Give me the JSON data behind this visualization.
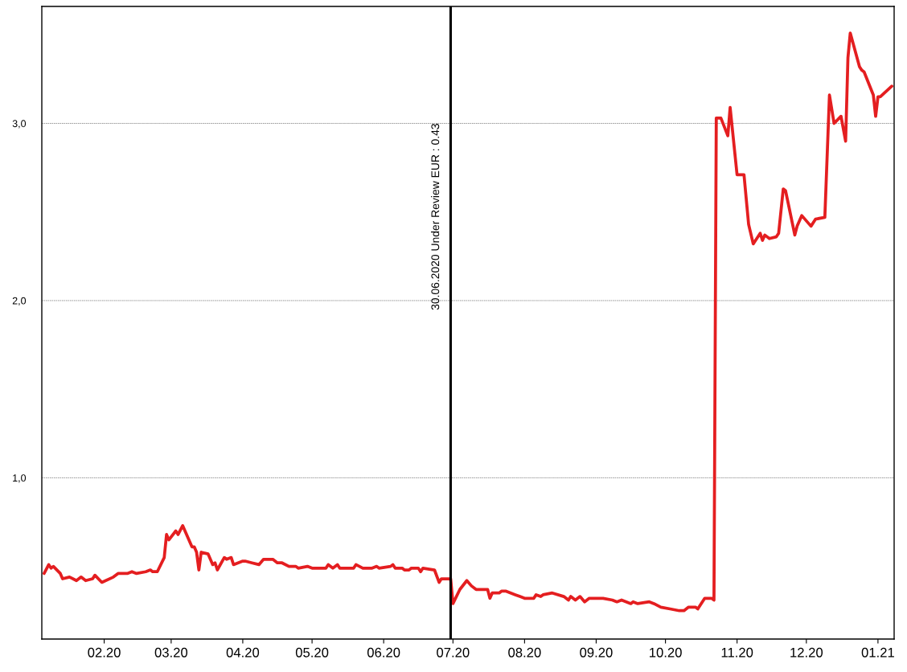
{
  "chart_data": {
    "type": "line",
    "x": [
      "2020-01-06",
      "2020-01-08",
      "2020-01-09",
      "2020-01-10",
      "2020-01-13",
      "2020-01-14",
      "2020-01-17",
      "2020-01-20",
      "2020-01-22",
      "2020-01-24",
      "2020-01-27",
      "2020-01-28",
      "2020-01-31",
      "2020-02-05",
      "2020-02-07",
      "2020-02-11",
      "2020-02-13",
      "2020-02-15",
      "2020-02-19",
      "2020-02-21",
      "2020-02-22",
      "2020-02-24",
      "2020-02-27",
      "2020-02-28",
      "2020-02-29",
      "2020-03-03",
      "2020-03-04",
      "2020-03-06",
      "2020-03-10",
      "2020-03-11",
      "2020-03-12",
      "2020-03-13",
      "2020-03-14",
      "2020-03-17",
      "2020-03-19",
      "2020-03-20",
      "2020-03-21",
      "2020-03-24",
      "2020-03-25",
      "2020-03-27",
      "2020-03-28",
      "2020-04-01",
      "2020-04-02",
      "2020-04-05",
      "2020-04-08",
      "2020-04-10",
      "2020-04-14",
      "2020-04-16",
      "2020-04-18",
      "2020-04-21",
      "2020-04-24",
      "2020-04-25",
      "2020-04-29",
      "2020-05-01",
      "2020-05-07",
      "2020-05-08",
      "2020-05-10",
      "2020-05-12",
      "2020-05-13",
      "2020-05-19",
      "2020-05-20",
      "2020-05-23",
      "2020-05-27",
      "2020-05-29",
      "2020-05-30",
      "2020-06-04",
      "2020-06-05",
      "2020-06-06",
      "2020-06-09",
      "2020-06-10",
      "2020-06-12",
      "2020-06-13",
      "2020-06-16",
      "2020-06-17",
      "2020-06-18",
      "2020-06-23",
      "2020-06-25",
      "2020-06-26",
      "2020-06-30",
      "2020-07-01",
      "2020-07-04",
      "2020-07-07",
      "2020-07-09",
      "2020-07-11",
      "2020-07-16",
      "2020-07-17",
      "2020-07-18",
      "2020-07-21",
      "2020-07-22",
      "2020-07-24",
      "2020-07-28",
      "2020-07-30",
      "2020-08-01",
      "2020-08-05",
      "2020-08-06",
      "2020-08-08",
      "2020-08-09",
      "2020-08-13",
      "2020-08-18",
      "2020-08-20",
      "2020-08-21",
      "2020-08-23",
      "2020-08-25",
      "2020-08-27",
      "2020-08-29",
      "2020-08-31",
      "2020-09-04",
      "2020-09-08",
      "2020-09-10",
      "2020-09-12",
      "2020-09-16",
      "2020-09-17",
      "2020-09-19",
      "2020-09-24",
      "2020-09-26",
      "2020-09-29",
      "2020-10-03",
      "2020-10-07",
      "2020-10-09",
      "2020-10-11",
      "2020-10-14",
      "2020-10-15",
      "2020-10-18",
      "2020-10-21",
      "2020-10-22",
      "2020-10-23",
      "2020-10-25",
      "2020-10-28",
      "2020-10-29",
      "2020-11-01",
      "2020-11-04",
      "2020-11-06",
      "2020-11-08",
      "2020-11-11",
      "2020-11-12",
      "2020-11-13",
      "2020-11-15",
      "2020-11-18",
      "2020-11-19",
      "2020-11-21",
      "2020-11-22",
      "2020-11-26",
      "2020-11-27",
      "2020-11-29",
      "2020-12-03",
      "2020-12-05",
      "2020-12-09",
      "2020-12-11",
      "2020-12-13",
      "2020-12-16",
      "2020-12-18",
      "2020-12-19",
      "2020-12-20",
      "2020-12-24",
      "2020-12-25",
      "2020-12-26",
      "2020-12-30",
      "2020-12-31",
      "2021-01-01",
      "2021-01-02",
      "2021-01-07"
    ],
    "series": [
      {
        "color": "#e41e20",
        "values": [
          0.46,
          0.51,
          0.49,
          0.5,
          0.46,
          0.43,
          0.44,
          0.42,
          0.44,
          0.42,
          0.43,
          0.45,
          0.41,
          0.44,
          0.46,
          0.46,
          0.47,
          0.46,
          0.47,
          0.48,
          0.47,
          0.47,
          0.55,
          0.68,
          0.65,
          0.7,
          0.68,
          0.73,
          0.61,
          0.61,
          0.58,
          0.48,
          0.58,
          0.57,
          0.51,
          0.52,
          0.48,
          0.55,
          0.54,
          0.55,
          0.51,
          0.53,
          0.53,
          0.52,
          0.51,
          0.54,
          0.54,
          0.52,
          0.52,
          0.5,
          0.5,
          0.49,
          0.5,
          0.49,
          0.49,
          0.51,
          0.49,
          0.51,
          0.49,
          0.49,
          0.51,
          0.49,
          0.49,
          0.5,
          0.49,
          0.5,
          0.51,
          0.49,
          0.49,
          0.48,
          0.48,
          0.49,
          0.49,
          0.47,
          0.49,
          0.48,
          0.41,
          0.43,
          0.43,
          0.29,
          0.37,
          0.42,
          0.39,
          0.37,
          0.37,
          0.32,
          0.35,
          0.35,
          0.36,
          0.36,
          0.34,
          0.33,
          0.32,
          0.32,
          0.34,
          0.33,
          0.34,
          0.35,
          0.33,
          0.31,
          0.33,
          0.31,
          0.33,
          0.3,
          0.32,
          0.32,
          0.32,
          0.31,
          0.3,
          0.31,
          0.29,
          0.3,
          0.29,
          0.3,
          0.29,
          0.27,
          0.26,
          0.25,
          0.25,
          0.27,
          0.27,
          0.26,
          0.32,
          0.32,
          0.31,
          3.03,
          3.03,
          2.93,
          3.09,
          2.71,
          2.71,
          2.43,
          2.32,
          2.38,
          2.34,
          2.37,
          2.35,
          2.36,
          2.38,
          2.63,
          2.62,
          2.37,
          2.42,
          2.48,
          2.42,
          2.46,
          2.47,
          3.16,
          3.0,
          3.04,
          2.9,
          3.37,
          3.51,
          3.32,
          3.3,
          3.29,
          3.16,
          3.04,
          3.15,
          3.15,
          3.21
        ]
      }
    ],
    "xlim": [
      "2020-01-05",
      "2021-01-08"
    ],
    "xticks": [
      {
        "value": "2020-02-01",
        "label": "02.20"
      },
      {
        "value": "2020-03-01",
        "label": "03.20"
      },
      {
        "value": "2020-04-01",
        "label": "04.20"
      },
      {
        "value": "2020-05-01",
        "label": "05.20"
      },
      {
        "value": "2020-06-01",
        "label": "06.20"
      },
      {
        "value": "2020-07-01",
        "label": "07.20"
      },
      {
        "value": "2020-08-01",
        "label": "08.20"
      },
      {
        "value": "2020-09-01",
        "label": "09.20"
      },
      {
        "value": "2020-10-01",
        "label": "10.20"
      },
      {
        "value": "2020-11-01",
        "label": "11.20"
      },
      {
        "value": "2020-12-01",
        "label": "12.20"
      },
      {
        "value": "2021-01-01",
        "label": "01.21"
      }
    ],
    "ylim": [
      0.09,
      3.66
    ],
    "yticks": [
      {
        "value": 1,
        "label": "1,0"
      },
      {
        "value": 2,
        "label": "2,0"
      },
      {
        "value": 3,
        "label": "3,0"
      }
    ],
    "grid": "y",
    "marker": "none",
    "line_style": "solid",
    "ref_lines": [
      {
        "axis": "x",
        "value": "2020-06-30",
        "label": "30.06.2020 Under Review EUR : 0.43",
        "color": "#000000",
        "line_style": "solid"
      }
    ]
  }
}
